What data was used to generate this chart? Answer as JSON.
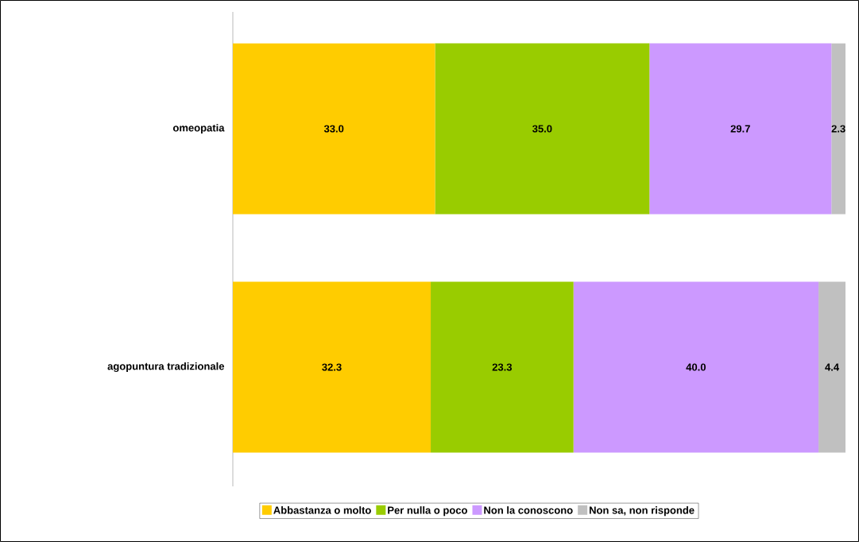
{
  "chart_data": {
    "type": "bar",
    "orientation": "horizontal",
    "stacked": true,
    "legend": "bottom",
    "categories": [
      "omeopatia",
      "agopuntura tradizionale"
    ],
    "series": [
      {
        "name": "Abbastanza o molto",
        "color": "#ffcc00",
        "values": [
          33.0,
          32.3
        ],
        "value_labels": [
          "33.0",
          "32.3"
        ]
      },
      {
        "name": "Per nulla o poco",
        "color": "#99cc00",
        "values": [
          35.0,
          23.3
        ],
        "value_labels": [
          "35.0",
          "23.3"
        ]
      },
      {
        "name": "Non la conoscono",
        "color": "#cc99ff",
        "values": [
          29.7,
          40.0
        ],
        "value_labels": [
          "29.7",
          "40.0"
        ]
      },
      {
        "name": "Non sa, non risponde",
        "color": "#c0c0c0",
        "values": [
          2.3,
          4.4
        ],
        "value_labels": [
          "2.3",
          "4.4"
        ]
      }
    ]
  }
}
